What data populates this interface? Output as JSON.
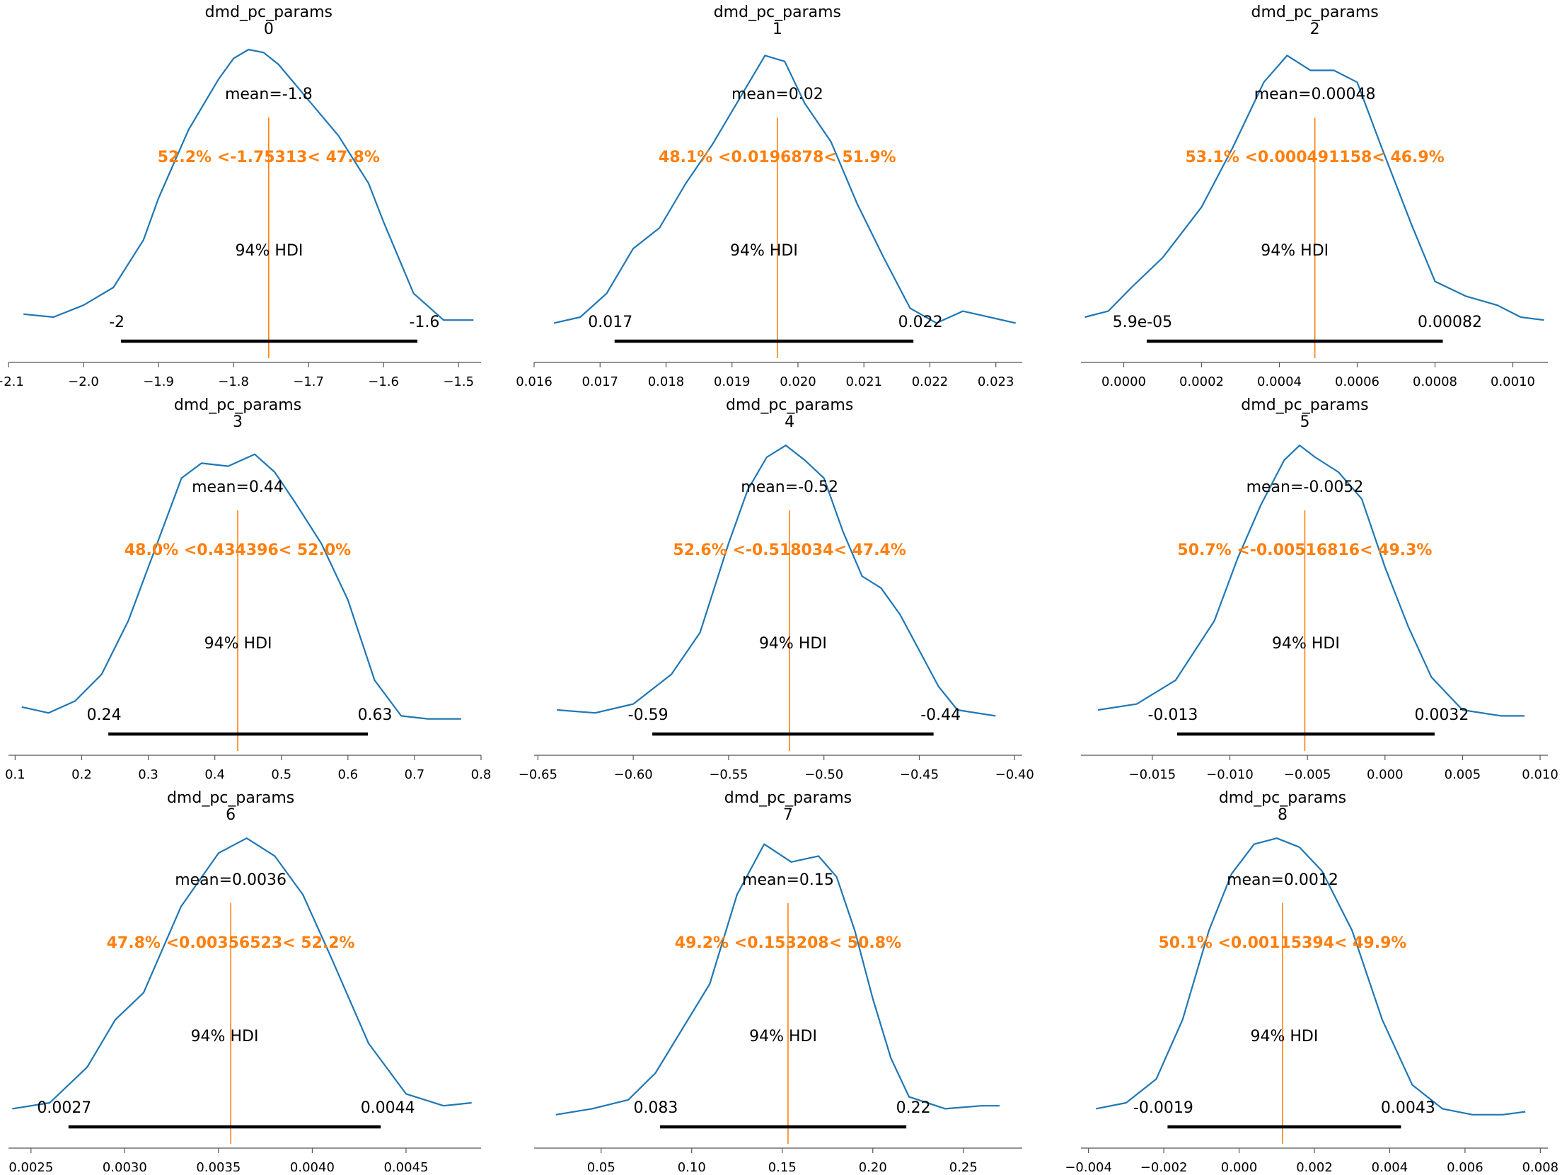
{
  "figure": {
    "curve_color": "#1f77b4",
    "ref_color": "#ff7f0e",
    "hdi_color": "#000000",
    "axis_color": "#555555"
  },
  "chart_data": [
    {
      "type": "line",
      "title": "dmd_pc_params",
      "subtitle": "0",
      "mean_label": "mean=-1.8",
      "ref_label": "52.2% <-1.75313< 47.8%",
      "hdi_label": "94% HDI",
      "hdi_low": -1.95,
      "hdi_high": -1.555,
      "hdi_low_label": "-2",
      "hdi_high_label": "-1.6",
      "ref_val": -1.7531,
      "xlim": [
        -2.1,
        -1.47
      ],
      "ticks": [
        -2.1,
        -2.0,
        -1.9,
        -1.8,
        -1.7,
        -1.6,
        -1.5
      ],
      "tick_labels": [
        "−2.1",
        "−2.0",
        "−1.9",
        "−1.8",
        "−1.7",
        "−1.6",
        "−1.5"
      ],
      "x": [
        -2.08,
        -2.04,
        -2.0,
        -1.96,
        -1.92,
        -1.9,
        -1.86,
        -1.82,
        -1.8,
        -1.78,
        -1.76,
        -1.74,
        -1.7,
        -1.66,
        -1.62,
        -1.6,
        -1.56,
        -1.52,
        -1.48
      ],
      "y": [
        0.11,
        0.1,
        0.14,
        0.2,
        0.36,
        0.5,
        0.73,
        0.9,
        0.97,
        1.0,
        0.99,
        0.95,
        0.83,
        0.71,
        0.55,
        0.42,
        0.18,
        0.09,
        0.09
      ]
    },
    {
      "type": "line",
      "title": "dmd_pc_params",
      "subtitle": "1",
      "mean_label": "mean=0.02",
      "ref_label": "48.1% <0.0196878< 51.9%",
      "hdi_label": "94% HDI",
      "hdi_low": 0.01722,
      "hdi_high": 0.02175,
      "hdi_low_label": "0.017",
      "hdi_high_label": "0.022",
      "ref_val": 0.019688,
      "xlim": [
        0.016,
        0.0234
      ],
      "ticks": [
        0.016,
        0.017,
        0.018,
        0.019,
        0.02,
        0.021,
        0.022,
        0.023
      ],
      "tick_labels": [
        "0.016",
        "0.017",
        "0.018",
        "0.019",
        "0.020",
        "0.021",
        "0.022",
        "0.023"
      ],
      "x": [
        0.0163,
        0.0167,
        0.0171,
        0.0175,
        0.0179,
        0.0183,
        0.0187,
        0.0191,
        0.0195,
        0.0198,
        0.0201,
        0.0205,
        0.0209,
        0.0213,
        0.0217,
        0.0221,
        0.0225,
        0.0229,
        0.0233
      ],
      "y": [
        0.08,
        0.1,
        0.18,
        0.33,
        0.4,
        0.55,
        0.68,
        0.83,
        0.98,
        0.96,
        0.82,
        0.69,
        0.48,
        0.3,
        0.13,
        0.08,
        0.12,
        0.1,
        0.08
      ]
    },
    {
      "type": "line",
      "title": "dmd_pc_params",
      "subtitle": "2",
      "mean_label": "mean=0.00048",
      "ref_label": "53.1% <0.000491158< 46.9%",
      "hdi_label": "94% HDI",
      "hdi_low": 5.9e-05,
      "hdi_high": 0.00082,
      "hdi_low_label": "5.9e-05",
      "hdi_high_label": "0.00082",
      "ref_val": 0.000491158,
      "xlim": [
        -0.00011,
        0.00109
      ],
      "ticks": [
        0.0,
        0.0002,
        0.0004,
        0.0006,
        0.0008,
        0.001
      ],
      "tick_labels": [
        "0.0000",
        "0.0002",
        "0.0004",
        "0.0006",
        "0.0008",
        "0.0010"
      ],
      "x": [
        -0.0001,
        -4e-05,
        2e-05,
        0.0001,
        0.0002,
        0.00028,
        0.00036,
        0.00042,
        0.00048,
        0.00054,
        0.0006,
        0.00066,
        0.00074,
        0.0008,
        0.00088,
        0.00096,
        0.00102,
        0.00108
      ],
      "y": [
        0.1,
        0.12,
        0.2,
        0.3,
        0.47,
        0.67,
        0.89,
        0.98,
        0.93,
        0.93,
        0.89,
        0.68,
        0.41,
        0.22,
        0.17,
        0.14,
        0.1,
        0.09
      ]
    },
    {
      "type": "line",
      "title": "dmd_pc_params",
      "subtitle": "3",
      "mean_label": "mean=0.44",
      "ref_label": "48.0% <0.434396< 52.0%",
      "hdi_label": "94% HDI",
      "hdi_low": 0.24,
      "hdi_high": 0.63,
      "hdi_low_label": "0.24",
      "hdi_high_label": "0.63",
      "ref_val": 0.4344,
      "xlim": [
        0.09,
        0.8
      ],
      "ticks": [
        0.1,
        0.2,
        0.3,
        0.4,
        0.5,
        0.6,
        0.7,
        0.8
      ],
      "tick_labels": [
        "0.1",
        "0.2",
        "0.3",
        "0.4",
        "0.5",
        "0.6",
        "0.7",
        "0.8"
      ],
      "x": [
        0.11,
        0.15,
        0.19,
        0.23,
        0.27,
        0.31,
        0.35,
        0.38,
        0.42,
        0.46,
        0.49,
        0.52,
        0.56,
        0.6,
        0.64,
        0.68,
        0.72,
        0.77
      ],
      "y": [
        0.11,
        0.09,
        0.13,
        0.22,
        0.4,
        0.64,
        0.88,
        0.93,
        0.92,
        0.96,
        0.9,
        0.8,
        0.66,
        0.47,
        0.2,
        0.08,
        0.07,
        0.07
      ]
    },
    {
      "type": "line",
      "title": "dmd_pc_params",
      "subtitle": "4",
      "mean_label": "mean=-0.52",
      "ref_label": "52.6% <-0.518034< 47.4%",
      "hdi_label": "94% HDI",
      "hdi_low": -0.59,
      "hdi_high": -0.4425,
      "hdi_low_label": "-0.59",
      "hdi_high_label": "-0.44",
      "ref_val": -0.518,
      "xlim": [
        -0.652,
        -0.396
      ],
      "ticks": [
        -0.65,
        -0.6,
        -0.55,
        -0.5,
        -0.45,
        -0.4
      ],
      "tick_labels": [
        "−0.65",
        "−0.60",
        "−0.55",
        "−0.50",
        "−0.45",
        "−0.40"
      ],
      "x": [
        -0.64,
        -0.62,
        -0.6,
        -0.58,
        -0.565,
        -0.55,
        -0.54,
        -0.53,
        -0.52,
        -0.51,
        -0.5,
        -0.49,
        -0.48,
        -0.47,
        -0.46,
        -0.45,
        -0.44,
        -0.43,
        -0.41
      ],
      "y": [
        0.1,
        0.09,
        0.12,
        0.22,
        0.36,
        0.66,
        0.84,
        0.95,
        0.99,
        0.94,
        0.88,
        0.7,
        0.55,
        0.51,
        0.42,
        0.3,
        0.18,
        0.1,
        0.08
      ]
    },
    {
      "type": "line",
      "title": "dmd_pc_params",
      "subtitle": "5",
      "mean_label": "mean=-0.0052",
      "ref_label": "50.7% <-0.00516816< 49.3%",
      "hdi_label": "94% HDI",
      "hdi_low": -0.0134,
      "hdi_high": 0.0032,
      "hdi_low_label": "-0.013",
      "hdi_high_label": "0.0032",
      "ref_val": -0.005168,
      "xlim": [
        -0.0196,
        0.0105
      ],
      "ticks": [
        -0.015,
        -0.01,
        -0.005,
        0.0,
        0.005,
        0.01
      ],
      "tick_labels": [
        "−0.015",
        "−0.010",
        "−0.005",
        "0.000",
        "0.005",
        "0.010"
      ],
      "x": [
        -0.0185,
        -0.016,
        -0.0135,
        -0.011,
        -0.0095,
        -0.008,
        -0.0065,
        -0.0055,
        -0.0045,
        -0.003,
        -0.0015,
        0.0,
        0.0015,
        0.003,
        0.005,
        0.0075,
        0.009
      ],
      "y": [
        0.1,
        0.12,
        0.2,
        0.4,
        0.61,
        0.79,
        0.94,
        0.99,
        0.95,
        0.9,
        0.81,
        0.58,
        0.38,
        0.21,
        0.1,
        0.08,
        0.08
      ]
    },
    {
      "type": "line",
      "title": "dmd_pc_params",
      "subtitle": "6",
      "mean_label": "mean=0.0036",
      "ref_label": "47.8% <0.00356523< 52.2%",
      "hdi_label": "94% HDI",
      "hdi_low": 0.0027,
      "hdi_high": 0.004365,
      "hdi_low_label": "0.0027",
      "hdi_high_label": "0.0044",
      "ref_val": 0.003565,
      "xlim": [
        0.00238,
        0.0049
      ],
      "ticks": [
        0.0025,
        0.003,
        0.0035,
        0.004,
        0.0045
      ],
      "tick_labels": [
        "0.0025",
        "0.0030",
        "0.0035",
        "0.0040",
        "0.0045"
      ],
      "x": [
        0.0024,
        0.0026,
        0.0028,
        0.00295,
        0.0031,
        0.0033,
        0.0035,
        0.00365,
        0.0038,
        0.00395,
        0.0041,
        0.0043,
        0.0045,
        0.0047,
        0.00485
      ],
      "y": [
        0.08,
        0.1,
        0.22,
        0.38,
        0.47,
        0.76,
        0.94,
        0.99,
        0.93,
        0.8,
        0.59,
        0.3,
        0.13,
        0.09,
        0.1
      ]
    },
    {
      "type": "line",
      "title": "dmd_pc_params",
      "subtitle": "7",
      "mean_label": "mean=0.15",
      "ref_label": "49.2% <0.153208< 50.8%",
      "hdi_label": "94% HDI",
      "hdi_low": 0.0825,
      "hdi_high": 0.2185,
      "hdi_low_label": "0.083",
      "hdi_high_label": "0.22",
      "ref_val": 0.1532,
      "xlim": [
        0.013,
        0.2825
      ],
      "ticks": [
        0.05,
        0.1,
        0.15,
        0.2,
        0.25
      ],
      "tick_labels": [
        "0.05",
        "0.10",
        "0.15",
        "0.20",
        "0.25"
      ],
      "x": [
        0.025,
        0.045,
        0.065,
        0.08,
        0.095,
        0.11,
        0.125,
        0.14,
        0.155,
        0.17,
        0.18,
        0.19,
        0.2,
        0.21,
        0.22,
        0.24,
        0.26,
        0.27
      ],
      "y": [
        0.06,
        0.08,
        0.11,
        0.2,
        0.35,
        0.5,
        0.8,
        0.97,
        0.91,
        0.93,
        0.86,
        0.68,
        0.45,
        0.25,
        0.12,
        0.08,
        0.09,
        0.09
      ]
    },
    {
      "type": "line",
      "title": "dmd_pc_params",
      "subtitle": "8",
      "mean_label": "mean=0.0012",
      "ref_label": "50.1% <0.00115394< 49.9%",
      "hdi_label": "94% HDI",
      "hdi_low": -0.0019,
      "hdi_high": 0.0043,
      "hdi_low_label": "-0.0019",
      "hdi_high_label": "0.0043",
      "ref_val": 0.001154,
      "xlim": [
        -0.0042,
        0.0082
      ],
      "ticks": [
        -0.004,
        -0.002,
        0.0,
        0.002,
        0.004,
        0.006,
        0.008
      ],
      "tick_labels": [
        "−0.004",
        "−0.002",
        "0.000",
        "0.002",
        "0.004",
        "0.006",
        "0.008"
      ],
      "x": [
        -0.0038,
        -0.003,
        -0.0022,
        -0.0015,
        -0.0008,
        -0.0002,
        0.0004,
        0.001,
        0.0016,
        0.0022,
        0.003,
        0.0038,
        0.0046,
        0.0054,
        0.0062,
        0.007,
        0.0076
      ],
      "y": [
        0.08,
        0.1,
        0.18,
        0.38,
        0.68,
        0.87,
        0.97,
        0.99,
        0.96,
        0.88,
        0.68,
        0.38,
        0.16,
        0.08,
        0.06,
        0.06,
        0.07
      ]
    }
  ]
}
